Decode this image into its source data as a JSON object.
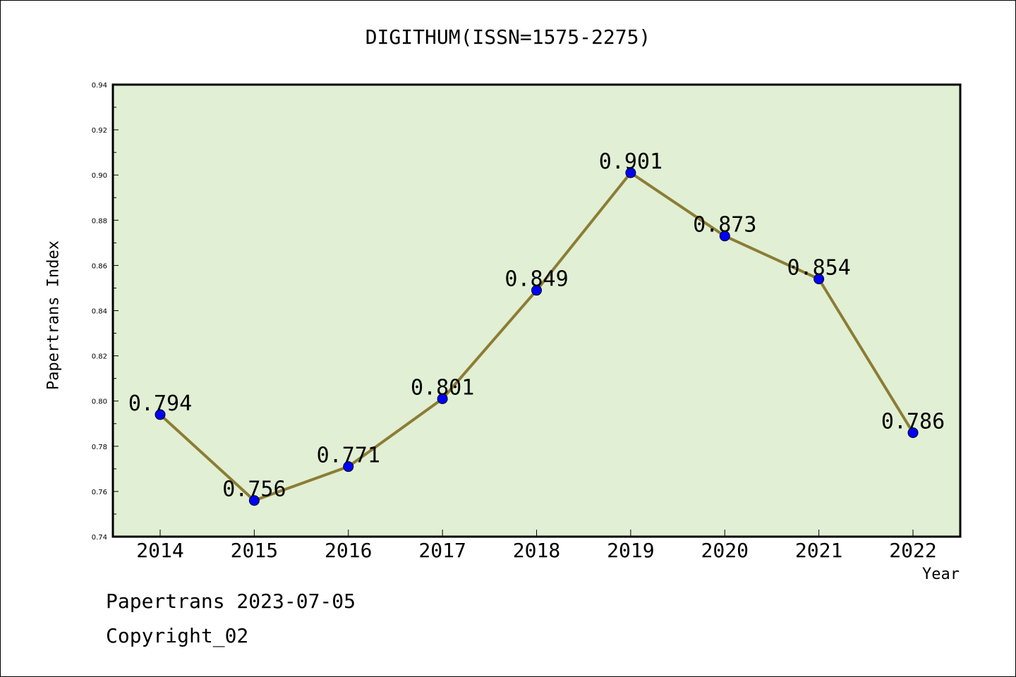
{
  "chart_data": {
    "type": "line",
    "title": "DIGITHUM(ISSN=1575-2275)",
    "xlabel": "Year",
    "ylabel": "Papertrans Index",
    "categories": [
      "2014",
      "2015",
      "2016",
      "2017",
      "2018",
      "2019",
      "2020",
      "2021",
      "2022"
    ],
    "series": [
      {
        "values": [
          0.794,
          0.756,
          0.771,
          0.801,
          0.849,
          0.901,
          0.873,
          0.854,
          0.786
        ],
        "data_labels": [
          "0.794",
          "0.756",
          "0.771",
          "0.801",
          "0.849",
          "0.901",
          "0.873",
          "0.854",
          "0.786"
        ],
        "line_color": "#8b7d35",
        "marker_color": "#0000ff"
      }
    ],
    "ylim": [
      0.74,
      0.94
    ],
    "yticks": [
      "0.74",
      "0.76",
      "0.78",
      "0.80",
      "0.82",
      "0.84",
      "0.86",
      "0.88",
      "0.90",
      "0.92",
      "0.94"
    ],
    "grid": false,
    "legend": "none",
    "plot_background": "#e1efd4"
  },
  "footer": {
    "date_text": "Papertrans 2023-07-05",
    "copyright_text": "Copyright_02"
  }
}
